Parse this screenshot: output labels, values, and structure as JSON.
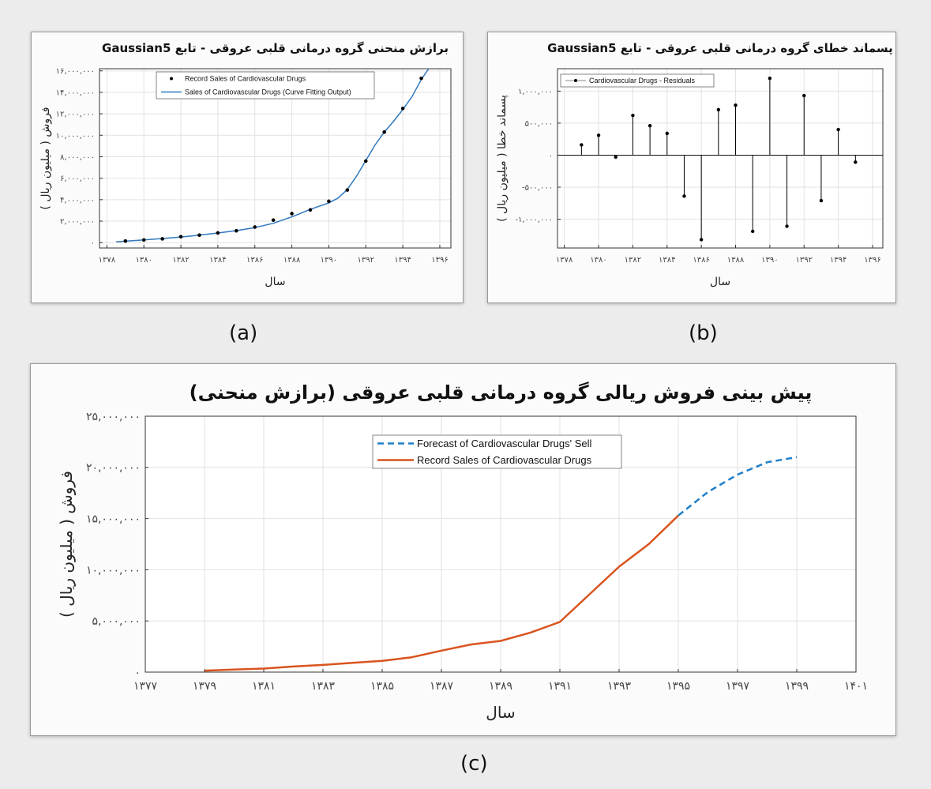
{
  "captions": {
    "a": "(a)",
    "b": "(b)",
    "c": "(c)"
  },
  "chart_data": [
    {
      "id": "a",
      "type": "line",
      "title": "برازش منحنی گروه درمانی قلبی عروقی - تابع Gaussian5",
      "xlabel": "سال",
      "ylabel": "فروش ( میلیون ریال )",
      "xlim": [
        1377.6,
        1396.6
      ],
      "ylim": [
        -500000,
        16200000
      ],
      "xticks": [
        1378,
        1380,
        1382,
        1384,
        1386,
        1388,
        1390,
        1392,
        1394,
        1396
      ],
      "xtick_labels": [
        "۱۳۷۸",
        "۱۳۸۰",
        "۱۳۸۲",
        "۱۳۸۴",
        "۱۳۸۶",
        "۱۳۸۸",
        "۱۳۹۰",
        "۱۳۹۲",
        "۱۳۹۴",
        "۱۳۹۶"
      ],
      "yticks": [
        0,
        2000000,
        4000000,
        6000000,
        8000000,
        10000000,
        12000000,
        14000000,
        16000000
      ],
      "ytick_labels": [
        "۰",
        "۲,۰۰۰,۰۰۰",
        "۴,۰۰۰,۰۰۰",
        "۶,۰۰۰,۰۰۰",
        "۸,۰۰۰,۰۰۰",
        "۱۰,۰۰۰,۰۰۰",
        "۱۲,۰۰۰,۰۰۰",
        "۱۴,۰۰۰,۰۰۰",
        "۱۶,۰۰۰,۰۰۰"
      ],
      "grid": true,
      "legend_position": "top-center",
      "series": [
        {
          "name": "Record Sales of Cardiovascular Drugs",
          "style": "points",
          "color": "#000000",
          "x": [
            1379,
            1380,
            1381,
            1382,
            1383,
            1384,
            1385,
            1386,
            1387,
            1388,
            1389,
            1390,
            1391,
            1392,
            1393,
            1394,
            1395
          ],
          "y": [
            150000,
            250000,
            350000,
            550000,
            700000,
            900000,
            1100000,
            1450000,
            2100000,
            2700000,
            3050000,
            3850000,
            4900000,
            7600000,
            10300000,
            12500000,
            15300000
          ]
        },
        {
          "name": "Sales of Cardiovascular Drugs (Curve Fitting Output)",
          "style": "line",
          "color": "#2f78c0",
          "x": [
            1378.5,
            1379,
            1380,
            1381,
            1382,
            1383,
            1384,
            1385,
            1386,
            1387,
            1388,
            1389,
            1390,
            1390.5,
            1391,
            1391.5,
            1392,
            1392.5,
            1393,
            1393.5,
            1394,
            1394.5,
            1395,
            1395.4
          ],
          "y": [
            80000,
            130000,
            250000,
            380000,
            520000,
            700000,
            900000,
            1120000,
            1400000,
            1800000,
            2400000,
            3100000,
            3700000,
            4150000,
            4950000,
            6200000,
            7650000,
            9100000,
            10300000,
            11300000,
            12400000,
            13600000,
            15200000,
            16200000
          ]
        }
      ]
    },
    {
      "id": "b",
      "type": "stem",
      "title": "پسماند خطای گروه درمانی قلبی عروقی - تابع Gaussian5",
      "xlabel": "سال",
      "ylabel": "پسماند خطا ( میلیون ریال )",
      "xlim": [
        1377.6,
        1396.6
      ],
      "ylim": [
        -1450000,
        1350000
      ],
      "xticks": [
        1378,
        1380,
        1382,
        1384,
        1386,
        1388,
        1390,
        1392,
        1394,
        1396
      ],
      "xtick_labels": [
        "۱۳۷۸",
        "۱۳۸۰",
        "۱۳۸۲",
        "۱۳۸۴",
        "۱۳۸۶",
        "۱۳۸۸",
        "۱۳۹۰",
        "۱۳۹۲",
        "۱۳۹۴",
        "۱۳۹۶"
      ],
      "yticks": [
        -1000000,
        -500000,
        0,
        500000,
        1000000
      ],
      "ytick_labels": [
        "-۱,۰۰۰,۰۰۰",
        "-۵۰۰,۰۰۰",
        "۰",
        "۵۰۰,۰۰۰",
        "۱,۰۰۰,۰۰۰"
      ],
      "grid": true,
      "legend_position": "top-left",
      "series": [
        {
          "name": "Cardiovascular Drugs - Residuals",
          "color": "#000000",
          "x": [
            1379,
            1380,
            1381,
            1382,
            1383,
            1384,
            1385,
            1386,
            1387,
            1388,
            1389,
            1390,
            1391,
            1392,
            1393,
            1394,
            1395
          ],
          "y": [
            160000,
            310000,
            -30000,
            620000,
            460000,
            340000,
            -640000,
            -1320000,
            710000,
            780000,
            -1190000,
            1200000,
            -1110000,
            930000,
            -710000,
            400000,
            -110000
          ]
        }
      ]
    },
    {
      "id": "c",
      "type": "line",
      "title": "پیش بینی فروش ریالی گروه درمانی قلبی عروقی (برازش منحنی)",
      "xlabel": "سال",
      "ylabel": "فروش ( میلیون ریال )",
      "xlim": [
        1377,
        1401
      ],
      "ylim": [
        0,
        25000000
      ],
      "xticks": [
        1377,
        1379,
        1381,
        1383,
        1385,
        1387,
        1389,
        1391,
        1393,
        1395,
        1397,
        1399,
        1401
      ],
      "xtick_labels": [
        "۱۳۷۷",
        "۱۳۷۹",
        "۱۳۸۱",
        "۱۳۸۳",
        "۱۳۸۵",
        "۱۳۸۷",
        "۱۳۸۹",
        "۱۳۹۱",
        "۱۳۹۳",
        "۱۳۹۵",
        "۱۳۹۷",
        "۱۳۹۹",
        "۱۴۰۱"
      ],
      "yticks": [
        0,
        5000000,
        10000000,
        15000000,
        20000000,
        25000000
      ],
      "ytick_labels": [
        "۰",
        "۵,۰۰۰,۰۰۰",
        "۱۰,۰۰۰,۰۰۰",
        "۱۵,۰۰۰,۰۰۰",
        "۲۰,۰۰۰,۰۰۰",
        "۲۵,۰۰۰,۰۰۰"
      ],
      "grid": true,
      "legend_position": "top-center",
      "series": [
        {
          "name": "Forecast of Cardiovascular Drugs' Sell",
          "style": "dashed",
          "color": "#1f7fc8",
          "x": [
            1395,
            1396,
            1397,
            1398,
            1399
          ],
          "y": [
            15300000,
            17600000,
            19300000,
            20500000,
            21000000
          ]
        },
        {
          "name": "Record Sales of Cardiovascular Drugs",
          "style": "solid",
          "color": "#d9541e",
          "x": [
            1379,
            1380,
            1381,
            1382,
            1383,
            1384,
            1385,
            1386,
            1387,
            1388,
            1389,
            1390,
            1391,
            1392,
            1393,
            1394,
            1395
          ],
          "y": [
            150000,
            250000,
            350000,
            550000,
            700000,
            900000,
            1100000,
            1450000,
            2100000,
            2700000,
            3050000,
            3850000,
            4900000,
            7600000,
            10300000,
            12500000,
            15300000
          ]
        }
      ]
    }
  ]
}
